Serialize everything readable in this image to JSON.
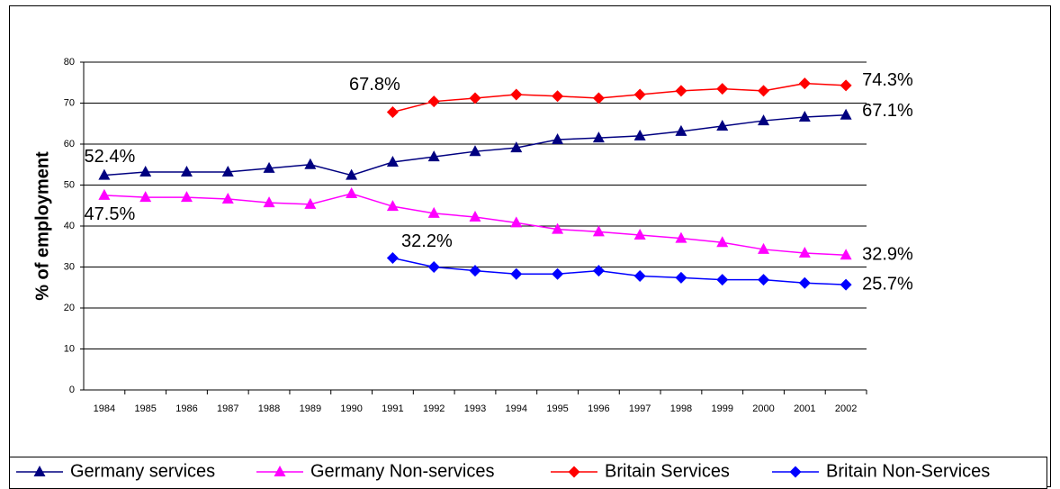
{
  "chart_data": {
    "type": "line",
    "y_label": "% of employment",
    "categories": [
      "1984",
      "1985",
      "1986",
      "1987",
      "1988",
      "1989",
      "1990",
      "1991",
      "1992",
      "1993",
      "1994",
      "1995",
      "1996",
      "1997",
      "1998",
      "1999",
      "2000",
      "2001",
      "2002"
    ],
    "ylim": [
      0,
      80
    ],
    "yticks": [
      0,
      10,
      20,
      30,
      40,
      50,
      60,
      70,
      80
    ],
    "grid": true,
    "series": [
      {
        "name": "Germany services",
        "color": "#000080",
        "marker": "triangle",
        "values": [
          52.4,
          53.2,
          53.2,
          53.2,
          54.1,
          55.0,
          52.4,
          55.6,
          56.9,
          58.2,
          59.1,
          61.1,
          61.5,
          62.0,
          63.1,
          64.4,
          65.7,
          66.6,
          67.1
        ],
        "value_labels": [
          "52.4%",
          null,
          null,
          null,
          null,
          null,
          null,
          null,
          null,
          null,
          null,
          null,
          null,
          null,
          null,
          null,
          null,
          null,
          "67.1%"
        ]
      },
      {
        "name": "Germany Non-services",
        "color": "#FF00FF",
        "marker": "triangle",
        "values": [
          47.5,
          47.0,
          47.0,
          46.6,
          45.7,
          45.3,
          47.9,
          44.8,
          43.1,
          42.2,
          40.8,
          39.2,
          38.6,
          37.8,
          37.0,
          36.0,
          34.3,
          33.4,
          32.9
        ],
        "value_labels": [
          "47.5%",
          null,
          null,
          null,
          null,
          null,
          null,
          null,
          null,
          null,
          null,
          null,
          null,
          null,
          null,
          null,
          null,
          null,
          "32.9%"
        ]
      },
      {
        "name": "Britain Services",
        "color": "#FF0000",
        "marker": "diamond",
        "values": [
          null,
          null,
          null,
          null,
          null,
          null,
          null,
          67.8,
          70.4,
          71.2,
          72.1,
          71.7,
          71.2,
          72.1,
          73.0,
          73.5,
          73.0,
          74.8,
          74.3
        ],
        "value_labels": [
          null,
          null,
          null,
          null,
          null,
          null,
          null,
          "67.8%",
          null,
          null,
          null,
          null,
          null,
          null,
          null,
          null,
          null,
          null,
          "74.3%"
        ]
      },
      {
        "name": "Britain Non-Services",
        "color": "#0000FF",
        "marker": "diamond",
        "values": [
          null,
          null,
          null,
          null,
          null,
          null,
          null,
          32.2,
          30.0,
          29.1,
          28.3,
          28.3,
          29.1,
          27.8,
          27.4,
          26.9,
          26.9,
          26.1,
          25.7
        ],
        "value_labels": [
          null,
          null,
          null,
          null,
          null,
          null,
          null,
          "32.2%",
          null,
          null,
          null,
          null,
          null,
          null,
          null,
          null,
          null,
          null,
          "25.7%"
        ]
      }
    ]
  }
}
